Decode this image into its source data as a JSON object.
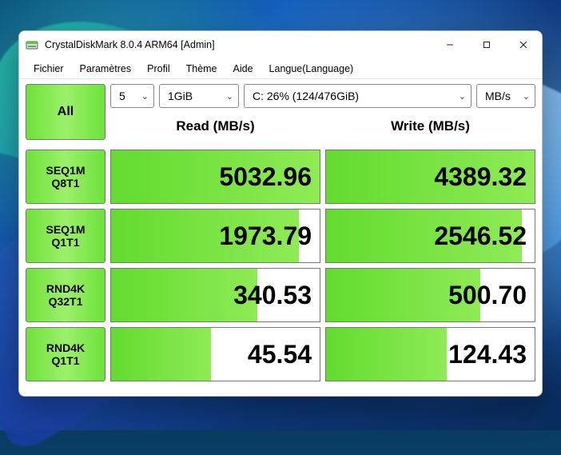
{
  "window": {
    "title": "CrystalDiskMark 8.0.4 ARM64 [Admin]"
  },
  "menu": {
    "items": [
      "Fichier",
      "Paramètres",
      "Profil",
      "Thème",
      "Aide",
      "Langue(Language)"
    ]
  },
  "controls": {
    "all_label": "All",
    "runs": "5",
    "size": "1GiB",
    "drive": "C: 26% (124/476GiB)",
    "unit": "MB/s"
  },
  "columns": {
    "read": "Read (MB/s)",
    "write": "Write (MB/s)"
  },
  "tests": [
    {
      "line1": "SEQ1M",
      "line2": "Q8T1",
      "read": "5032.96",
      "read_fill": 100,
      "write": "4389.32",
      "write_fill": 100
    },
    {
      "line1": "SEQ1M",
      "line2": "Q1T1",
      "read": "1973.79",
      "read_fill": 90,
      "write": "2546.52",
      "write_fill": 94
    },
    {
      "line1": "RND4K",
      "line2": "Q32T1",
      "read": "340.53",
      "read_fill": 70,
      "write": "500.70",
      "write_fill": 74
    },
    {
      "line1": "RND4K",
      "line2": "Q1T1",
      "read": "45.54",
      "read_fill": 48,
      "write": "124.43",
      "write_fill": 58
    }
  ],
  "colors": {
    "accent_grad_a": "#6de23a",
    "accent_grad_b": "#9cf06a",
    "border": "#777777",
    "window_bg": "#ffffff"
  }
}
